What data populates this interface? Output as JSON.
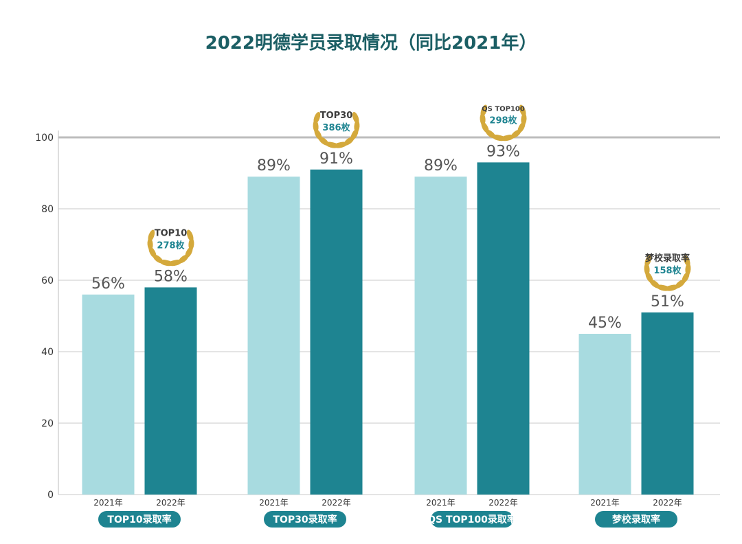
{
  "chart_data": {
    "type": "bar",
    "title": "2022明德学员录取情况（同比2021年）",
    "xlabel": "",
    "ylabel": "",
    "ylim": [
      0,
      100
    ],
    "yticks": [
      0,
      20,
      40,
      60,
      80,
      100
    ],
    "grid": true,
    "categories": [
      "TOP10录取率",
      "TOP30录取率",
      "QS TOP100录取率",
      "梦校录取率"
    ],
    "category_badges": [
      {
        "line1": "TOP10",
        "line2": "278枚"
      },
      {
        "line1": "TOP30",
        "line2": "386枚"
      },
      {
        "line1": "QS TOP100",
        "line2": "298枚"
      },
      {
        "line1": "梦校录取率",
        "line2": "158枚"
      }
    ],
    "series": [
      {
        "name": "2021年",
        "values": [
          56,
          89,
          89,
          45
        ],
        "labels": [
          "56%",
          "89%",
          "89%",
          "45%"
        ],
        "color": "#a8dbe0"
      },
      {
        "name": "2022年",
        "values": [
          58,
          91,
          93,
          51
        ],
        "labels": [
          "58%",
          "91%",
          "93%",
          "51%"
        ],
        "color": "#1e8491"
      }
    ],
    "colors": {
      "title": "#1b5e64",
      "category_pill": "#1e8491",
      "laurel": "#d4a93c",
      "badge_line1": "#3c3c3c",
      "badge_line2": "#1e8491",
      "grid": "#c8c8c8",
      "axis_text": "#333333",
      "value_label": "#555555"
    }
  }
}
